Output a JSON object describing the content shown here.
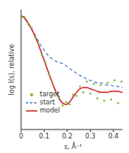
{
  "chart_data": {
    "type": "line",
    "x_label": "s, Å⁻¹",
    "y_label": "log I(s), relative",
    "xlim": [
      0,
      0.45
    ],
    "xticks": [
      0,
      0.1,
      0.2,
      0.3,
      0.4
    ],
    "ylim": [
      0,
      1
    ],
    "tick_labels": "x",
    "legend": "lower left",
    "x": [
      0,
      0.015,
      0.03,
      0.045,
      0.06,
      0.075,
      0.09,
      0.105,
      0.12,
      0.135,
      0.15,
      0.165,
      0.18,
      0.195,
      0.21,
      0.225,
      0.24,
      0.255,
      0.27,
      0.285,
      0.3,
      0.315,
      0.33,
      0.345,
      0.36,
      0.375,
      0.39,
      0.405,
      0.42,
      0.435,
      0.45
    ],
    "series": [
      {
        "name": "target",
        "type": "scatter",
        "marker": "circle",
        "color": "#7fbf3f",
        "values": [
          0.95,
          0.94,
          0.88,
          0.85,
          0.77,
          0.72,
          0.62,
          0.56,
          0.46,
          0.4,
          0.31,
          0.27,
          0.2,
          0.23,
          0.21,
          0.29,
          0.28,
          0.36,
          0.31,
          0.4,
          0.3,
          0.38,
          0.26,
          0.37,
          0.24,
          0.39,
          0.25,
          0.41,
          0.22,
          0.4,
          0.2
        ]
      },
      {
        "name": "start",
        "type": "line",
        "line_style": "dashed",
        "color": "#4a7fc1",
        "values": [
          0.95,
          0.93,
          0.89,
          0.84,
          0.79,
          0.74,
          0.69,
          0.65,
          0.61,
          0.59,
          0.57,
          0.56,
          0.55,
          0.53,
          0.51,
          0.49,
          0.47,
          0.45,
          0.44,
          0.42,
          0.41,
          0.4,
          0.39,
          0.39,
          0.38,
          0.37,
          0.37,
          0.36,
          0.36,
          0.35,
          0.35
        ]
      },
      {
        "name": "model",
        "type": "line",
        "line_style": "solid",
        "color": "#cc2222",
        "values": [
          0.95,
          0.93,
          0.89,
          0.84,
          0.78,
          0.71,
          0.63,
          0.55,
          0.47,
          0.39,
          0.32,
          0.26,
          0.22,
          0.21,
          0.23,
          0.27,
          0.31,
          0.34,
          0.35,
          0.35,
          0.34,
          0.33,
          0.32,
          0.31,
          0.31,
          0.31,
          0.32,
          0.32,
          0.32,
          0.31,
          0.31
        ]
      }
    ]
  }
}
